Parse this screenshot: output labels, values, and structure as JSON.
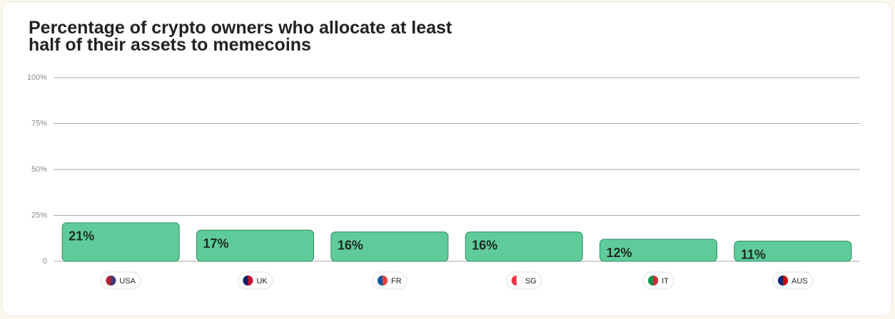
{
  "chart_data": {
    "type": "bar",
    "title": "Percentage of crypto owners who allocate at least half of their assets to memecoins",
    "categories": [
      "USA",
      "UK",
      "FR",
      "SG",
      "IT",
      "AUS"
    ],
    "values": [
      21,
      17,
      16,
      16,
      12,
      11
    ],
    "value_labels": [
      "21%",
      "17%",
      "16%",
      "16%",
      "12%",
      "11%"
    ],
    "color": "#5fcb9b",
    "ylim": [
      0,
      100
    ],
    "yticks": [
      0,
      {
        "value": 25,
        "label": "25%"
      },
      {
        "value": 50,
        "label": "50%"
      },
      {
        "value": 75,
        "label": "75%"
      },
      {
        "value": 100,
        "label": "100%"
      }
    ],
    "grid": true
  }
}
